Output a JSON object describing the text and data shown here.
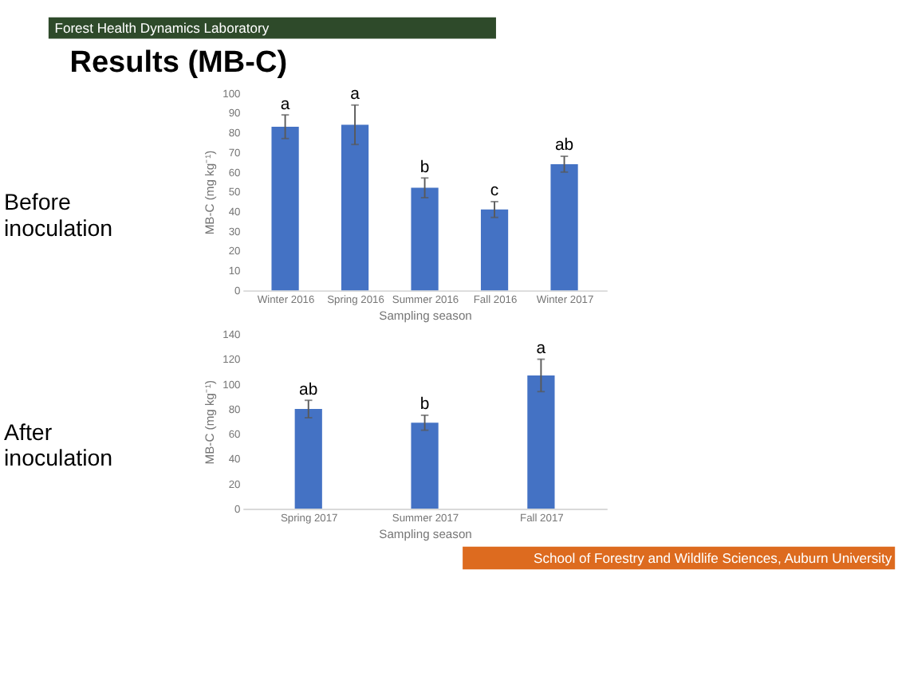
{
  "chart_data": [
    {
      "type": "bar",
      "title": "Results (MB-C)",
      "subtitle": "Before inoculation",
      "xlabel": "Sampling season",
      "ylabel": "MB-C (mg kg⁻¹)",
      "categories": [
        "Winter 2016",
        "Spring 2016",
        "Summer 2016",
        "Fall 2016",
        "Winter 2017"
      ],
      "series": [
        {
          "color": "#4472c4",
          "values": [
            83,
            84,
            52,
            41,
            64
          ],
          "errors": [
            6,
            10,
            5,
            4,
            4
          ]
        }
      ],
      "ylim": [
        0,
        100
      ],
      "yticks": [
        0,
        10,
        20,
        30,
        40,
        50,
        60,
        70,
        80,
        90,
        100
      ],
      "grid": false,
      "annotations": [
        "Forest Health Dynamics Laboratory",
        {
          "text": "a",
          "x": "Winter 2016",
          "y": 83
        },
        {
          "text": "a",
          "x": "Spring 2016",
          "y": 84
        },
        {
          "text": "b",
          "x": "Summer 2016",
          "y": 52
        },
        {
          "text": "c",
          "x": "Fall 2016",
          "y": 41
        },
        {
          "text": "ab",
          "x": "Winter 2017",
          "y": 64
        }
      ]
    },
    {
      "type": "bar",
      "subtitle": "After inoculation",
      "xlabel": "Sampling season",
      "ylabel": "MB-C (mg kg⁻¹)",
      "categories": [
        "Spring 2017",
        "Summer 2017",
        "Fall 2017"
      ],
      "series": [
        {
          "color": "#4472c4",
          "values": [
            80,
            69,
            107
          ],
          "errors": [
            7,
            6,
            13
          ]
        }
      ],
      "ylim": [
        0,
        140
      ],
      "yticks": [
        0,
        20,
        40,
        60,
        80,
        100,
        120,
        140
      ],
      "grid": false,
      "annotations": [
        "School of Forestry and Wildlife Sciences, Auburn University",
        {
          "text": "ab",
          "x": "Spring 2017",
          "y": 80
        },
        {
          "text": "b",
          "x": "Summer 2017",
          "y": 69
        },
        {
          "text": "a",
          "x": "Fall 2017",
          "y": 107
        }
      ]
    }
  ]
}
